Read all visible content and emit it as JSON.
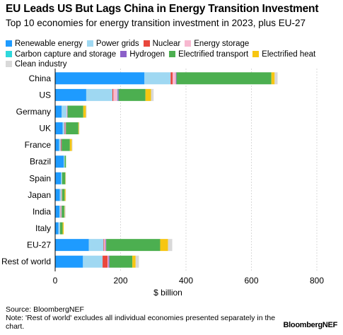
{
  "header": {
    "title": "EU Leads US But Lags China in Energy Transition Investment",
    "subtitle": "Top 10 economies for energy transition investment in 2023, plus EU-27"
  },
  "footer": {
    "source": "Source: BloombergNEF",
    "note": "Note: 'Rest of world' excludes all individual economies presented separately in the chart.",
    "brand": "BloombergNEF"
  },
  "chart_data": {
    "type": "bar",
    "orientation": "horizontal",
    "stacked": true,
    "title": "EU Leads US But Lags China in Energy Transition Investment",
    "subtitle": "Top 10 economies for energy transition investment in 2023, plus EU-27",
    "xlabel": "$ billion",
    "ylabel": "",
    "xlim": [
      0,
      800
    ],
    "xticks": [
      0,
      200,
      400,
      600,
      800
    ],
    "grid": "vertical",
    "legend_position": "top",
    "categories": [
      "China",
      "US",
      "Germany",
      "UK",
      "France",
      "Brazil",
      "Spain",
      "Japan",
      "India",
      "Italy",
      "EU-27",
      "Rest of world"
    ],
    "series": [
      {
        "name": "Renewable energy",
        "color": "#1E9BFF",
        "values": [
          273,
          95,
          20,
          23,
          12,
          26,
          18,
          14,
          13,
          10,
          103,
          85
        ]
      },
      {
        "name": "Power grids",
        "color": "#9FD8F2",
        "values": [
          80,
          80,
          15,
          6,
          5,
          3,
          3,
          5,
          3,
          5,
          45,
          60
        ]
      },
      {
        "name": "Nuclear",
        "color": "#E9473D",
        "values": [
          6,
          3,
          0,
          2,
          2,
          0,
          0,
          1,
          1,
          0,
          2,
          15
        ]
      },
      {
        "name": "Energy storage",
        "color": "#F7B8D0",
        "values": [
          10,
          12,
          2,
          1,
          0,
          0,
          0,
          1,
          2,
          0,
          4,
          3
        ]
      },
      {
        "name": "Carbon capture and storage",
        "color": "#2FD8DC",
        "values": [
          0,
          1,
          0,
          0,
          0,
          0,
          0,
          0,
          0,
          0,
          0,
          0
        ]
      },
      {
        "name": "Hydrogen",
        "color": "#8C60C9",
        "values": [
          2,
          3,
          1,
          1,
          1,
          0,
          0,
          0,
          1,
          0,
          2,
          3
        ]
      },
      {
        "name": "Electrified transport",
        "color": "#4CAF50",
        "values": [
          290,
          82,
          48,
          38,
          25,
          4,
          10,
          8,
          8,
          8,
          165,
          70
        ]
      },
      {
        "name": "Electrified heat",
        "color": "#F7C612",
        "values": [
          10,
          17,
          8,
          2,
          6,
          0,
          1,
          3,
          1,
          3,
          24,
          10
        ]
      },
      {
        "name": "Clean industry",
        "color": "#D9D9D9",
        "values": [
          9,
          8,
          2,
          1,
          2,
          0,
          1,
          1,
          3,
          0,
          13,
          10
        ]
      }
    ]
  }
}
